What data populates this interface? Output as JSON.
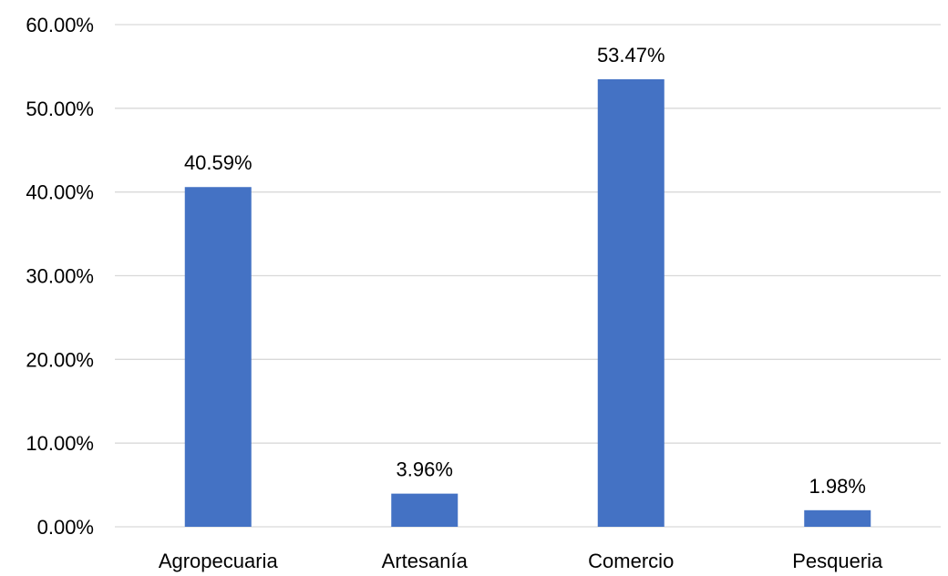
{
  "chart_data": {
    "type": "bar",
    "categories": [
      "Agropecuaria",
      "Artesanía",
      "Comercio",
      "Pesqueria"
    ],
    "values": [
      40.59,
      3.96,
      53.47,
      1.98
    ],
    "data_labels": [
      "40.59%",
      "3.96%",
      "53.47%",
      "1.98%"
    ],
    "ylim": [
      0,
      60
    ],
    "yticks": [
      0,
      10,
      20,
      30,
      40,
      50,
      60
    ],
    "ytick_labels": [
      "0.00%",
      "10.00%",
      "20.00%",
      "30.00%",
      "40.00%",
      "50.00%",
      "60.00%"
    ],
    "grid": true,
    "legend": "none",
    "bar_color": "#4472C4",
    "title": "",
    "xlabel": "",
    "ylabel": ""
  }
}
